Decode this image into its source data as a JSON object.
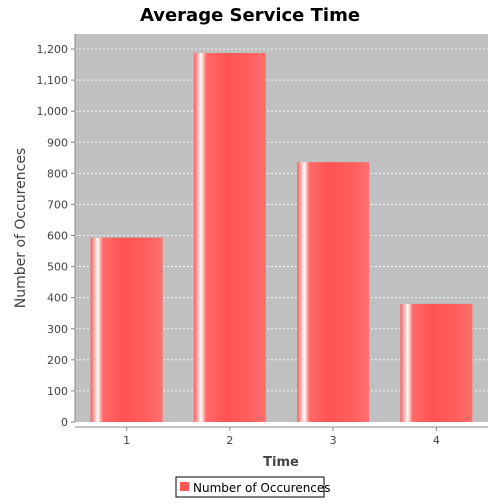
{
  "chart_data": {
    "type": "bar",
    "title": "Average Service Time",
    "xlabel": "Time",
    "ylabel": "Number of Occurences",
    "categories": [
      "1",
      "2",
      "3",
      "4"
    ],
    "series": [
      {
        "name": "Number of Occurences",
        "values": [
          593,
          1187,
          836,
          380
        ]
      }
    ],
    "ylim": [
      0,
      1270
    ],
    "yticks": [
      0,
      100,
      200,
      300,
      400,
      500,
      600,
      700,
      800,
      900,
      1000,
      1100,
      1200
    ],
    "ytick_labels": [
      "0",
      "100",
      "200",
      "300",
      "400",
      "500",
      "600",
      "700",
      "800",
      "900",
      "1,000",
      "1,100",
      "1,200"
    ],
    "grid": true,
    "legend_position": "bottom",
    "colors": {
      "bar": "#ff5555",
      "plot_background": "#c0c0c0",
      "gridline": "#ffffff"
    }
  }
}
